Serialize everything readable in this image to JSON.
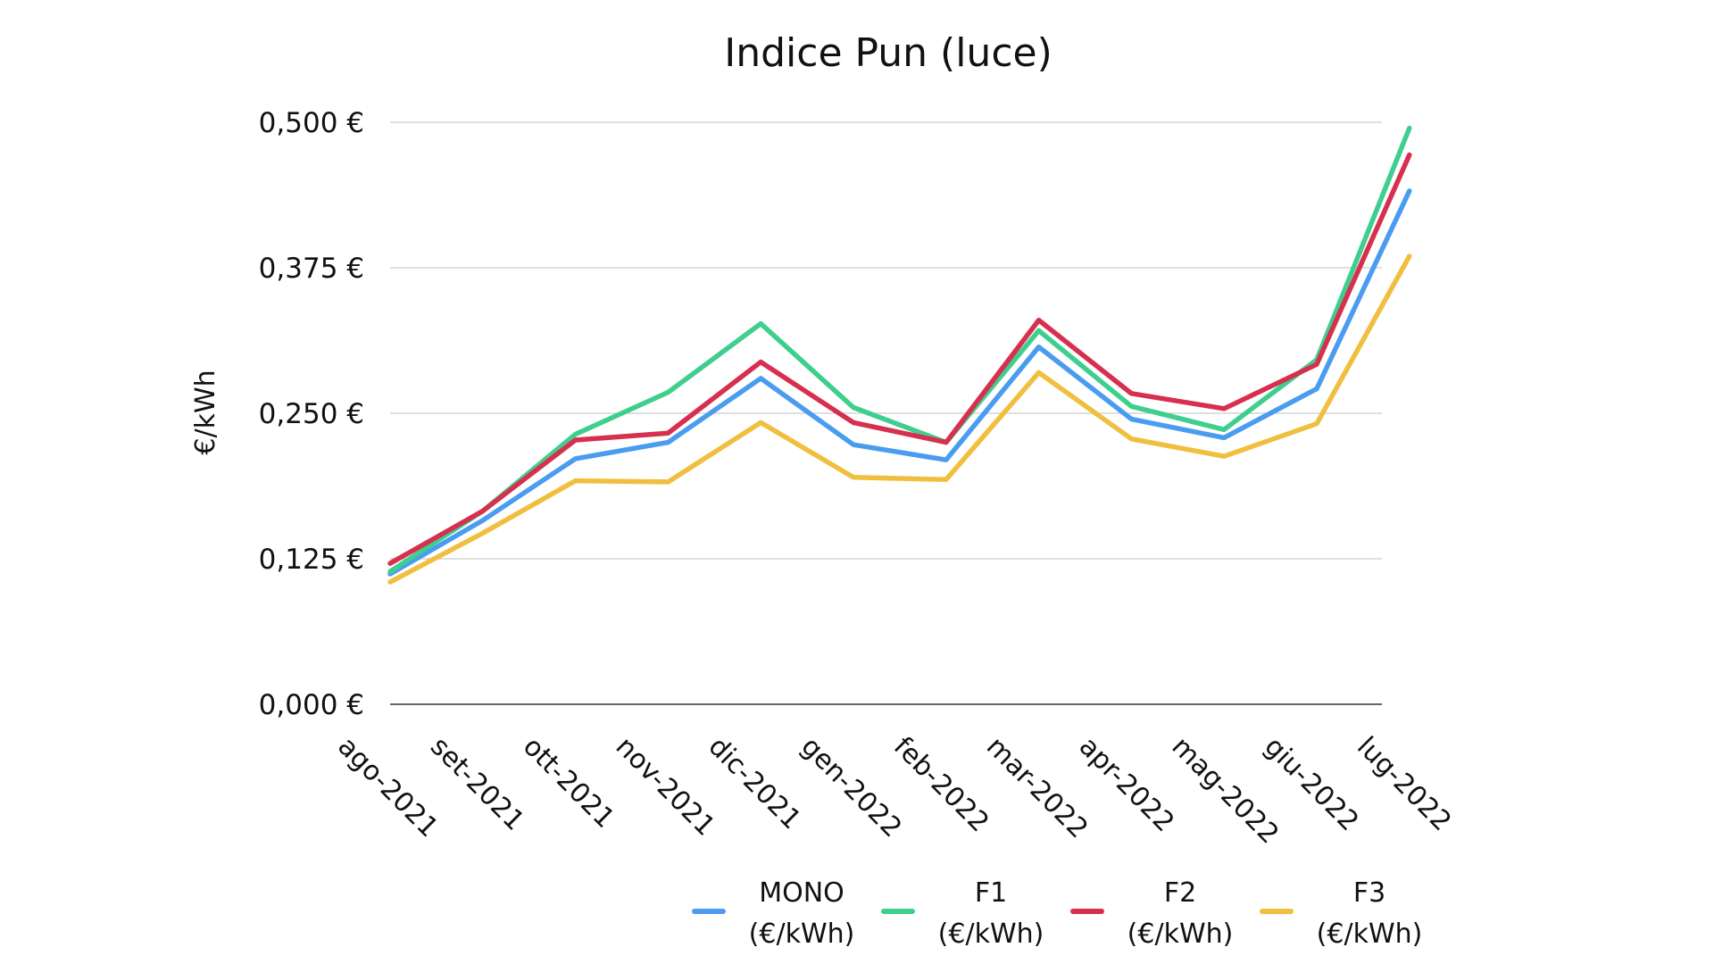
{
  "chart_data": {
    "type": "line",
    "title": "Indice Pun (luce)",
    "xlabel": "",
    "ylabel": "€/kWh",
    "ylim": [
      0,
      0.5
    ],
    "yticks": [
      0,
      0.125,
      0.25,
      0.375,
      0.5
    ],
    "ytick_labels": [
      "0,000 €",
      "0,125 €",
      "0,250 €",
      "0,375 €",
      "0,500 €"
    ],
    "grid": true,
    "legend_position": "bottom",
    "categories": [
      "ago-2021",
      "set-2021",
      "ott-2021",
      "nov-2021",
      "dic-2021",
      "gen-2022",
      "feb-2022",
      "mar-2022",
      "apr-2022",
      "mag-2022",
      "giu-2022",
      "lug-2022"
    ],
    "series": [
      {
        "name": "MONO (€/kWh)",
        "name_lines": [
          "MONO",
          "(€/kWh)"
        ],
        "color": "#4a9cf0",
        "values": [
          0.112,
          0.158,
          0.211,
          0.225,
          0.28,
          0.223,
          0.21,
          0.307,
          0.245,
          0.229,
          0.271,
          0.441
        ]
      },
      {
        "name": "F1 (€/kWh)",
        "name_lines": [
          "F1",
          "(€/kWh)"
        ],
        "color": "#3ecf8e",
        "values": [
          0.114,
          0.166,
          0.232,
          0.268,
          0.327,
          0.255,
          0.225,
          0.321,
          0.256,
          0.236,
          0.296,
          0.495
        ]
      },
      {
        "name": "F2 (€/kWh)",
        "name_lines": [
          "F2",
          "(€/kWh)"
        ],
        "color": "#d7304f",
        "values": [
          0.121,
          0.166,
          0.227,
          0.233,
          0.294,
          0.242,
          0.225,
          0.33,
          0.267,
          0.254,
          0.292,
          0.472
        ]
      },
      {
        "name": "F3 (€/kWh)",
        "name_lines": [
          "F3",
          "(€/kWh)"
        ],
        "color": "#f0bf3f",
        "values": [
          0.105,
          0.147,
          0.192,
          0.191,
          0.242,
          0.195,
          0.193,
          0.285,
          0.228,
          0.213,
          0.241,
          0.385
        ]
      }
    ]
  }
}
